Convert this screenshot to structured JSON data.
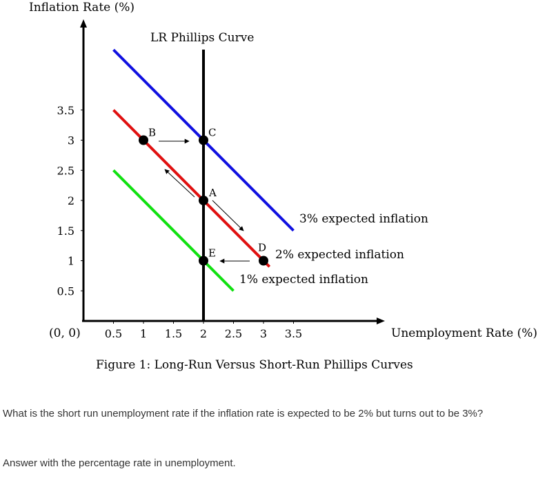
{
  "chart_data": {
    "type": "line",
    "ylabel": "Inflation Rate (%)",
    "xlabel": "Unemployment Rate (%)",
    "origin_label": "(0, 0)",
    "caption": "Figure 1: Long-Run Versus Short-Run Phillips Curves",
    "xlim": [
      0,
      5.0
    ],
    "ylim": [
      0,
      5.0
    ],
    "x_ticks": [
      0.5,
      1,
      1.5,
      2,
      2.5,
      3,
      3.5
    ],
    "x_tick_labels": [
      "0.5",
      "1",
      "1.5",
      "2",
      "2.5",
      "3",
      "3.5"
    ],
    "y_ticks": [
      0.5,
      1,
      1.5,
      2,
      2.5,
      3,
      3.5
    ],
    "y_tick_labels": [
      "0.5",
      "1",
      "1.5",
      "2",
      "2.5",
      "3",
      "3.5"
    ],
    "grid": false,
    "lr_curve": {
      "label": "LR Phillips Curve",
      "x": 2,
      "color": "#000000"
    },
    "series": [
      {
        "name": "3% expected inflation",
        "x": [
          0.5,
          3.5
        ],
        "y": [
          4.5,
          1.5
        ],
        "color": "#1010e0"
      },
      {
        "name": "2% expected inflation",
        "x": [
          0.5,
          3.1
        ],
        "y": [
          3.5,
          0.9
        ],
        "color": "#e01010"
      },
      {
        "name": "1% expected inflation",
        "x": [
          0.5,
          2.5
        ],
        "y": [
          2.5,
          0.5
        ],
        "color": "#10e010"
      }
    ],
    "points": [
      {
        "label": "A",
        "x": 2,
        "y": 2
      },
      {
        "label": "B",
        "x": 1,
        "y": 3
      },
      {
        "label": "C",
        "x": 2,
        "y": 3
      },
      {
        "label": "D",
        "x": 3,
        "y": 1
      },
      {
        "label": "E",
        "x": 2,
        "y": 1
      }
    ]
  },
  "question": "What is the short run unemployment rate if the inflation rate is expected to be 2% but turns out to be 3%?",
  "answer_note": "Answer with  the percentage rate in unemployment."
}
